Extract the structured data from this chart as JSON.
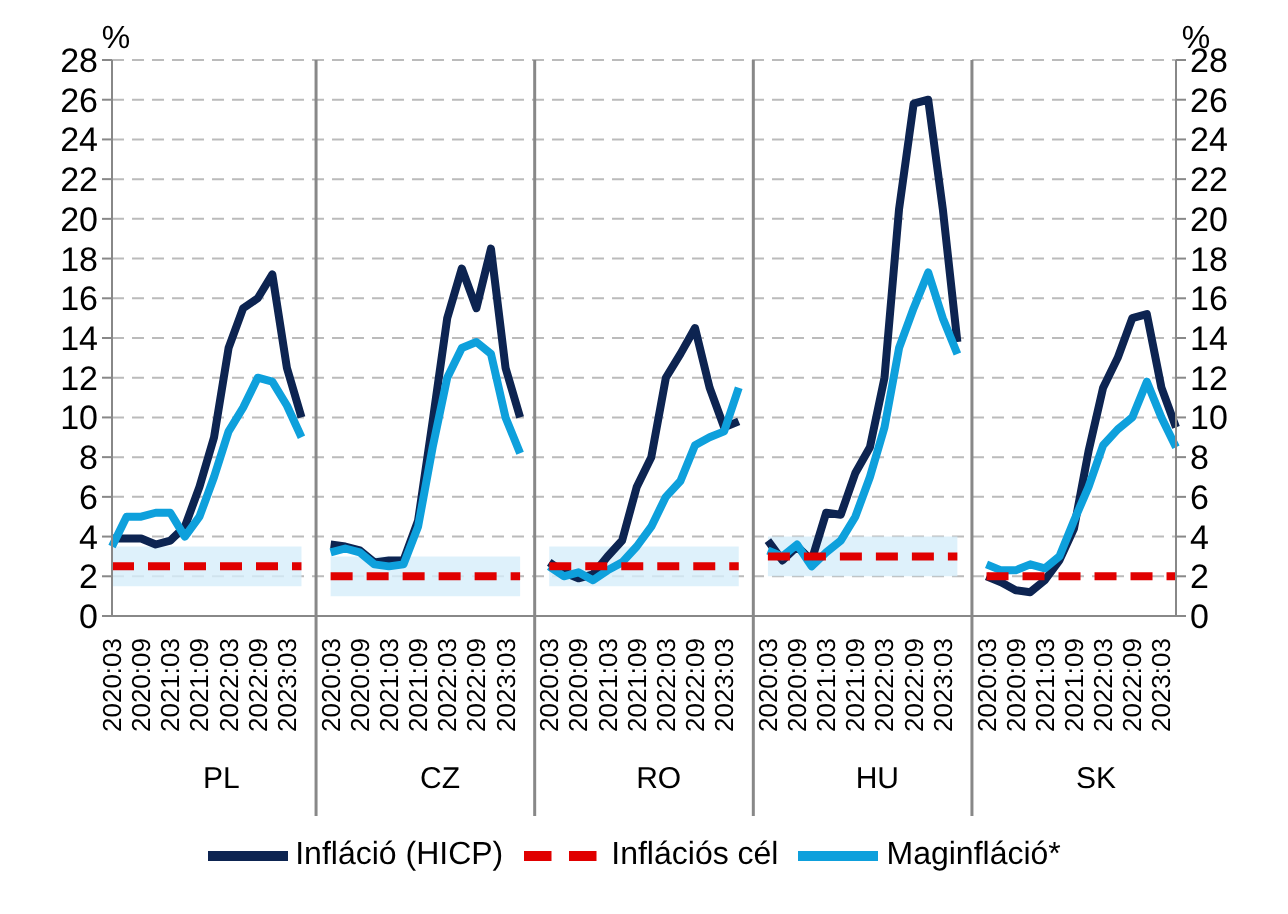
{
  "chart_data": {
    "type": "line",
    "ylabel": "%",
    "y2label": "%",
    "categories": [
      "2020:03",
      null,
      "2020:09",
      null,
      "2021:03",
      null,
      "2021:09",
      null,
      "2022:03",
      null,
      "2022:09",
      null,
      "2023:03",
      null,
      null,
      "2020:03",
      null,
      "2020:09",
      null,
      "2021:03",
      null,
      "2021:09",
      null,
      "2022:03",
      null,
      "2022:09",
      null,
      "2023:03",
      null,
      null,
      "2020:03",
      null,
      "2020:09",
      null,
      "2021:03",
      null,
      "2021:09",
      null,
      "2022:03",
      null,
      "2022:09",
      null,
      "2023:03",
      null,
      null,
      "2020:03",
      null,
      "2020:09",
      null,
      "2021:03",
      null,
      "2021:09",
      null,
      "2022:03",
      null,
      "2022:09",
      null,
      "2023:03",
      null,
      null,
      "2020:03",
      null,
      "2020:09",
      null,
      "2021:03",
      null,
      "2021:09",
      null,
      "2022:03",
      null,
      "2022:09",
      null,
      "2023:03",
      null
    ],
    "series": [
      {
        "name": "Infláció (HICP)",
        "color": "#0d2451",
        "line_style": "solid",
        "values": [
          3.9,
          3.9,
          3.9,
          3.6,
          3.8,
          4.5,
          6.5,
          9.0,
          13.5,
          15.5,
          16.0,
          17.2,
          12.5,
          10.0,
          null,
          3.6,
          3.5,
          3.3,
          2.7,
          2.8,
          2.8,
          4.8,
          9.8,
          15.0,
          17.5,
          15.5,
          18.5,
          12.5,
          10.0,
          null,
          2.7,
          2.2,
          1.9,
          2.1,
          3.0,
          3.8,
          6.5,
          8.0,
          12.0,
          13.2,
          14.5,
          11.5,
          9.5,
          9.8,
          null,
          3.8,
          2.8,
          3.5,
          2.8,
          5.2,
          5.1,
          7.2,
          8.5,
          12.0,
          20.5,
          25.8,
          26.0,
          20.5,
          13.8,
          null,
          2.0,
          1.7,
          1.3,
          1.2,
          1.8,
          2.8,
          4.4,
          8.3,
          11.5,
          13.0,
          15.0,
          15.2,
          11.5,
          9.5
        ]
      },
      {
        "name": "Maginfláció*",
        "color": "#0ea0dc",
        "line_style": "solid",
        "values": [
          3.5,
          5.0,
          5.0,
          5.2,
          5.2,
          4.0,
          5.0,
          7.0,
          9.3,
          10.5,
          12.0,
          11.8,
          10.6,
          9.0,
          null,
          3.2,
          3.4,
          3.2,
          2.6,
          2.5,
          2.6,
          4.5,
          8.5,
          12.0,
          13.5,
          13.8,
          13.2,
          10.0,
          8.2,
          null,
          2.5,
          2.0,
          2.2,
          1.8,
          2.3,
          2.7,
          3.5,
          4.5,
          6.0,
          6.8,
          8.6,
          9.0,
          9.3,
          11.5,
          null,
          3.3,
          3.0,
          3.6,
          2.5,
          3.2,
          3.8,
          5.0,
          7.0,
          9.5,
          13.5,
          15.5,
          17.3,
          15.0,
          13.2,
          null,
          2.6,
          2.3,
          2.3,
          2.6,
          2.4,
          3.0,
          4.8,
          6.5,
          8.6,
          9.4,
          10.0,
          11.8,
          10.0,
          8.5
        ]
      },
      {
        "name": "Inflációs cél",
        "color": "#e00000",
        "line_style": "dashed",
        "values": [
          2.5,
          2.5,
          2.5,
          2.5,
          2.5,
          2.5,
          2.5,
          2.5,
          2.5,
          2.5,
          2.5,
          2.5,
          2.5,
          2.5,
          null,
          2,
          2,
          2,
          2,
          2,
          2,
          2,
          2,
          2,
          2,
          2,
          2,
          2,
          2,
          null,
          2.5,
          2.5,
          2.5,
          2.5,
          2.5,
          2.5,
          2.5,
          2.5,
          2.5,
          2.5,
          2.5,
          2.5,
          2.5,
          2.5,
          null,
          3,
          3,
          3,
          3,
          3,
          3,
          3,
          3,
          3,
          3,
          3,
          3,
          3,
          3,
          null,
          2,
          2,
          2,
          2,
          2,
          2,
          2,
          2,
          2,
          2,
          2,
          2,
          2,
          2
        ],
        "lower": [
          1.5,
          1.5,
          1.5,
          1.5,
          1.5,
          1.5,
          1.5,
          1.5,
          1.5,
          1.5,
          1.5,
          1.5,
          1.5,
          1.5,
          null,
          1,
          1,
          1,
          1,
          1,
          1,
          1,
          1,
          1,
          1,
          1,
          1,
          1,
          1,
          null,
          1.5,
          1.5,
          1.5,
          1.5,
          1.5,
          1.5,
          1.5,
          1.5,
          1.5,
          1.5,
          1.5,
          1.5,
          1.5,
          1.5,
          null,
          2,
          2,
          2,
          2,
          2,
          2,
          2,
          2,
          2,
          2,
          2,
          2,
          2,
          2,
          null,
          null,
          null,
          null,
          null,
          null,
          null,
          null,
          null,
          null,
          null,
          null,
          null,
          null,
          null
        ],
        "upper": [
          3.5,
          3.5,
          3.5,
          3.5,
          3.5,
          3.5,
          3.5,
          3.5,
          3.5,
          3.5,
          3.5,
          3.5,
          3.5,
          3.5,
          null,
          3,
          3,
          3,
          3,
          3,
          3,
          3,
          3,
          3,
          3,
          3,
          3,
          3,
          3,
          null,
          3.5,
          3.5,
          3.5,
          3.5,
          3.5,
          3.5,
          3.5,
          3.5,
          3.5,
          3.5,
          3.5,
          3.5,
          3.5,
          3.5,
          null,
          4,
          4,
          4,
          4,
          4,
          4,
          4,
          4,
          4,
          4,
          4,
          4,
          4,
          4,
          null,
          null,
          null,
          null,
          null,
          null,
          null,
          null,
          null,
          null,
          null,
          null,
          null,
          null,
          null
        ]
      }
    ],
    "ylim": [
      0,
      28
    ],
    "yticks": [
      0,
      2,
      4,
      6,
      8,
      10,
      12,
      14,
      16,
      18,
      20,
      22,
      24,
      26,
      28
    ],
    "y2lim": [
      0,
      28
    ],
    "y2ticks": [
      0,
      2,
      4,
      6,
      8,
      10,
      12,
      14,
      16,
      18,
      20,
      22,
      24,
      26,
      28
    ],
    "grid": "y",
    "legend": "bottom",
    "marker": "none",
    "annotations": [
      "PL",
      "CZ",
      "RO",
      "HU",
      "SK"
    ]
  }
}
